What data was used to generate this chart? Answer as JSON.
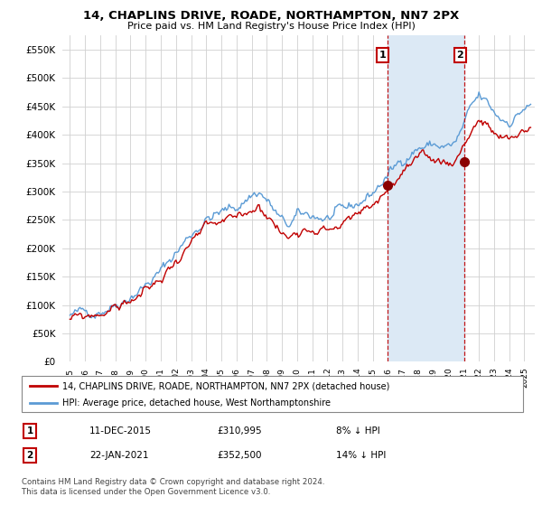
{
  "title": "14, CHAPLINS DRIVE, ROADE, NORTHAMPTON, NN7 2PX",
  "subtitle": "Price paid vs. HM Land Registry's House Price Index (HPI)",
  "legend_line1": "14, CHAPLINS DRIVE, ROADE, NORTHAMPTON, NN7 2PX (detached house)",
  "legend_line2": "HPI: Average price, detached house, West Northamptonshire",
  "annotation1_label": "1",
  "annotation1_date": "11-DEC-2015",
  "annotation1_price": "£310,995",
  "annotation1_hpi": "8% ↓ HPI",
  "annotation2_label": "2",
  "annotation2_date": "22-JAN-2021",
  "annotation2_price": "£352,500",
  "annotation2_hpi": "14% ↓ HPI",
  "footer": "Contains HM Land Registry data © Crown copyright and database right 2024.\nThis data is licensed under the Open Government Licence v3.0.",
  "sale1_x": 2015.958,
  "sale1_y": 310995,
  "sale2_x": 2021.058,
  "sale2_y": 352500,
  "hpi_color": "#5b9bd5",
  "price_color": "#c00000",
  "annotation_box_color": "#c00000",
  "vline_color": "#c00000",
  "shade_color": "#dce9f5",
  "background_color": "#ffffff",
  "grid_color": "#d0d0d0",
  "ylim": [
    0,
    575000
  ],
  "xlim_start": 1994.5,
  "xlim_end": 2025.7
}
